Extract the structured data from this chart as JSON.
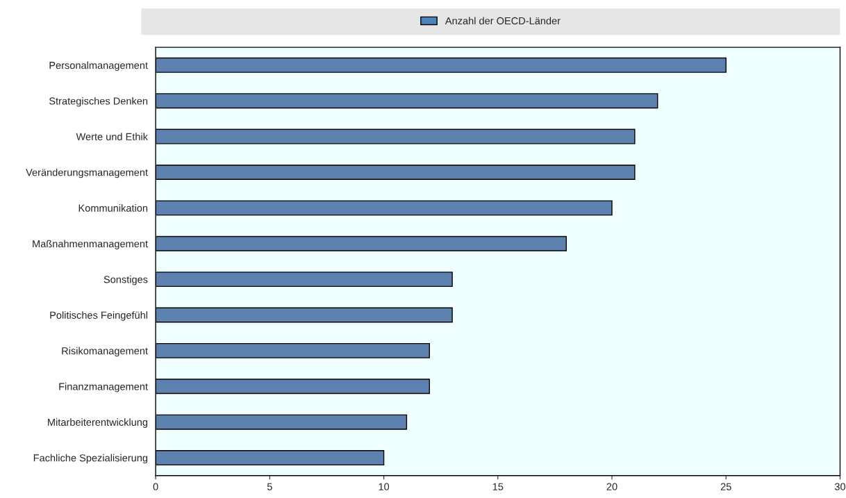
{
  "chart_data": {
    "type": "bar",
    "orientation": "horizontal",
    "categories": [
      "Personalmanagement",
      "Strategisches Denken",
      "Werte und Ethik",
      "Veränderungsmanagement",
      "Kommunikation",
      "Maßnahmenmanagement",
      "Sonstiges",
      "Politisches Feingefühl",
      "Risikomanagement",
      "Finanzmanagement",
      "Mitarbeiterentwicklung",
      "Fachliche Spezialisierung"
    ],
    "series": [
      {
        "name": "Anzahl der OECD-Länder",
        "color": "#4f81bd",
        "values": [
          25,
          22,
          21,
          21,
          20,
          18,
          13,
          13,
          12,
          12,
          11,
          10
        ]
      }
    ],
    "xlim": [
      0,
      30
    ],
    "xticks": [
      0,
      5,
      10,
      15,
      20,
      25,
      30
    ],
    "grid": false,
    "legend": "top"
  }
}
